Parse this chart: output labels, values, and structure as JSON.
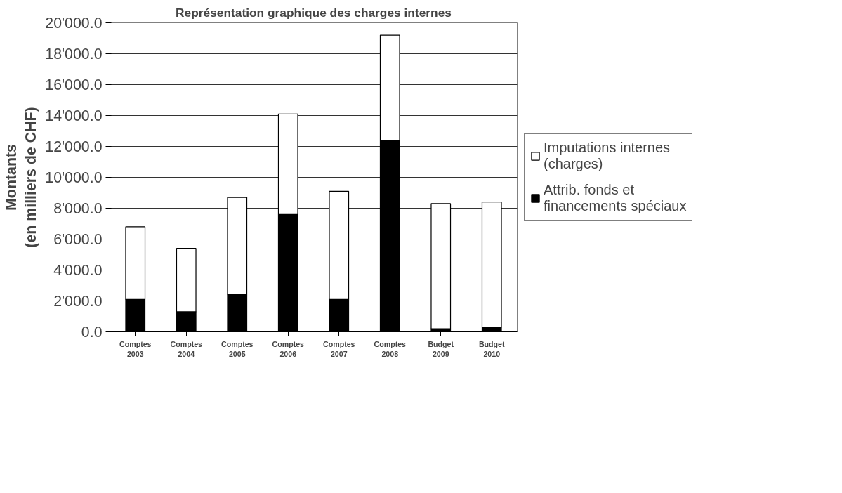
{
  "chart_data": {
    "type": "bar",
    "title": "Représentation graphique des charges internes",
    "ylabel": "Montants\n(en milliers de CHF)",
    "categories": [
      "Comptes\n2003",
      "Comptes\n2004",
      "Comptes\n2005",
      "Comptes\n2006",
      "Comptes\n2007",
      "Comptes\n2008",
      "Budget\n2009",
      "Budget\n2010"
    ],
    "stacked": true,
    "series": [
      {
        "name": "Attrib. fonds et\nfinancements spéciaux",
        "color": "#000000",
        "values": [
          2100,
          1300,
          2400,
          7600,
          2100,
          12400,
          200,
          300
        ]
      },
      {
        "name": "Imputations internes\n(charges)",
        "color": "#ffffff",
        "values": [
          4700,
          4100,
          6300,
          6500,
          7000,
          6800,
          8100,
          8100
        ]
      }
    ],
    "ylim": [
      0,
      20000
    ],
    "yticks": [
      {
        "value": 0,
        "label": "0.0"
      },
      {
        "value": 2000,
        "label": "2'000.0"
      },
      {
        "value": 4000,
        "label": "4'000.0"
      },
      {
        "value": 6000,
        "label": "6'000.0"
      },
      {
        "value": 8000,
        "label": "8'000.0"
      },
      {
        "value": 10000,
        "label": "10'000.0"
      },
      {
        "value": 12000,
        "label": "12'000.0"
      },
      {
        "value": 14000,
        "label": "14'000.0"
      },
      {
        "value": 16000,
        "label": "16'000.0"
      },
      {
        "value": 18000,
        "label": "18'000.0"
      },
      {
        "value": 20000,
        "label": "20'000.0"
      }
    ],
    "grid": "y",
    "legend": "right"
  }
}
